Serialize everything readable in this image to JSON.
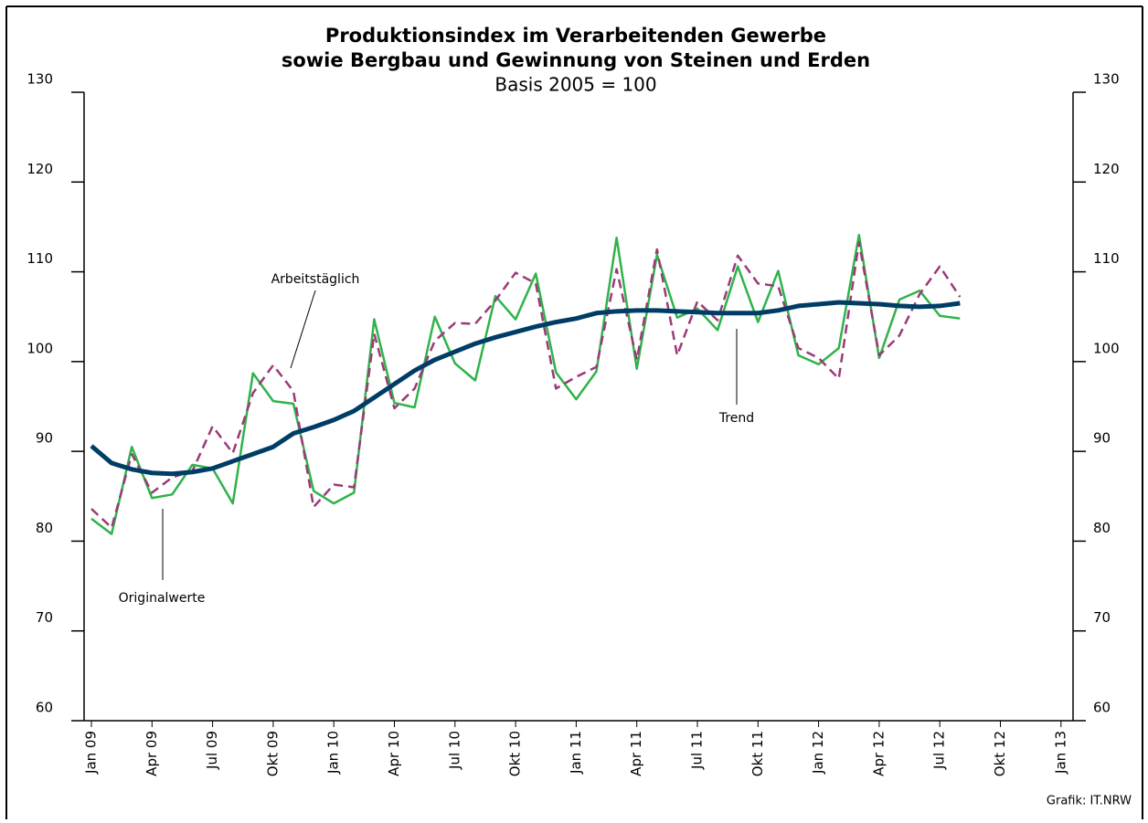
{
  "chart_data": {
    "type": "line",
    "title": [
      "Produktionsindex im Verarbeitenden Gewerbe",
      "sowie Bergbau und Gewinnung von Steinen und Erden"
    ],
    "subtitle": "Basis 2005 = 100",
    "source": "Grafik: IT.NRW",
    "categories": [
      "Jan 09",
      null,
      null,
      "Apr 09",
      null,
      null,
      "Jul 09",
      null,
      null,
      "Okt 09",
      null,
      null,
      "Jan 10",
      null,
      null,
      "Apr 10",
      null,
      null,
      "Jul 10",
      null,
      null,
      "Okt 10",
      null,
      null,
      "Jan 11",
      null,
      null,
      "Apr 11",
      null,
      null,
      "Jul 11",
      null,
      null,
      "Okt 11",
      null,
      null,
      "Jan 12",
      null,
      null,
      "Apr 12",
      null,
      null,
      "Jul 12",
      null,
      null,
      "Okt 12",
      null,
      null,
      "Jan 13"
    ],
    "ylim": [
      60,
      130
    ],
    "yticks": [
      60,
      70,
      80,
      90,
      100,
      110,
      120,
      130
    ],
    "y2lim": [
      60,
      130
    ],
    "y2ticks": [
      60,
      70,
      80,
      90,
      100,
      110,
      120,
      130
    ],
    "series": [
      {
        "name": "Originalwerte",
        "color": "#2fb34a",
        "dashed": false,
        "width": 2.5,
        "values": [
          82.5,
          80.8,
          90.5,
          84.8,
          85.2,
          88.5,
          88.1,
          84.2,
          98.7,
          95.6,
          95.3,
          85.6,
          84.2,
          85.4,
          104.7,
          95.4,
          94.9,
          105.0,
          99.8,
          97.9,
          107.3,
          104.7,
          109.8,
          98.8,
          95.8,
          98.9,
          113.8,
          99.2,
          111.9,
          104.9,
          105.9,
          103.5,
          110.6,
          104.4,
          110.1,
          100.7,
          99.7,
          101.5,
          114.1,
          100.4,
          106.9,
          107.9,
          105.1,
          104.8,
          null,
          null,
          null,
          null,
          null
        ]
      },
      {
        "name": "Arbeitstäglich",
        "color": "#9b3a78",
        "dashed": true,
        "width": 2.5,
        "values": [
          83.6,
          81.5,
          89.7,
          85.4,
          87.1,
          87.8,
          92.8,
          89.8,
          96.5,
          99.6,
          96.7,
          83.8,
          86.3,
          86.0,
          103.1,
          94.8,
          97.0,
          102.3,
          104.3,
          104.2,
          106.8,
          109.9,
          108.7,
          97.0,
          98.3,
          99.4,
          110.3,
          100.2,
          112.5,
          100.7,
          106.7,
          104.6,
          111.8,
          108.7,
          108.4,
          101.5,
          100.4,
          98.1,
          113.3,
          100.7,
          102.9,
          107.5,
          110.6,
          107.2,
          null,
          null,
          null,
          null,
          null
        ]
      },
      {
        "name": "Trend",
        "color": "#003d66",
        "dashed": false,
        "width": 5,
        "values": [
          90.6,
          88.7,
          88.0,
          87.6,
          87.5,
          87.7,
          88.1,
          88.9,
          89.7,
          90.5,
          92.0,
          92.7,
          93.5,
          94.5,
          96.0,
          97.5,
          99.0,
          100.2,
          101.1,
          102.0,
          102.7,
          103.3,
          103.9,
          104.4,
          104.8,
          105.4,
          105.6,
          105.7,
          105.7,
          105.6,
          105.5,
          105.4,
          105.4,
          105.4,
          105.7,
          106.2,
          106.4,
          106.6,
          106.5,
          106.4,
          106.2,
          106.1,
          106.2,
          106.5,
          null,
          null,
          null,
          null,
          null
        ]
      }
    ]
  }
}
